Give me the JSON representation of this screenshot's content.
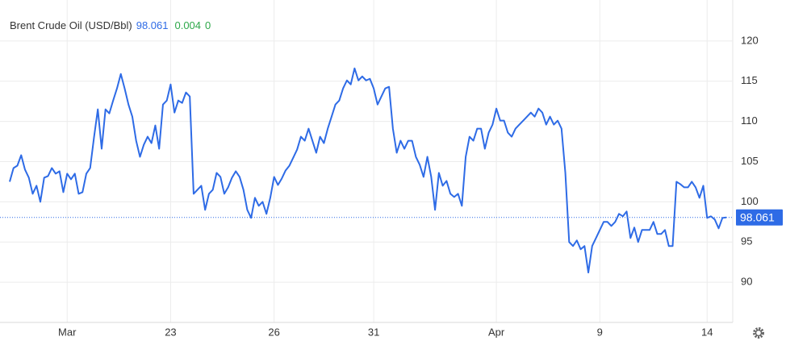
{
  "chart_data": {
    "type": "line",
    "title": "Brent Crude Oil (USD/Bbl)",
    "price": 98.061,
    "change": 0.004,
    "change_pct": 0,
    "color": "#2e6be6",
    "grid": true,
    "ylim": [
      85,
      125
    ],
    "yticks": [
      90,
      95,
      100,
      105,
      110,
      115,
      120
    ],
    "xlim": [
      0,
      187
    ],
    "xticks": [
      {
        "value": 15,
        "label": "Mar"
      },
      {
        "value": 42,
        "label": "23"
      },
      {
        "value": 69,
        "label": "26"
      },
      {
        "value": 95,
        "label": "31"
      },
      {
        "value": 127,
        "label": "Apr"
      },
      {
        "value": 154,
        "label": "9"
      },
      {
        "value": 182,
        "label": "14"
      }
    ],
    "values": [
      102.5,
      104.2,
      104.5,
      105.8,
      104.0,
      103.0,
      101.0,
      102.0,
      100.0,
      103.0,
      103.2,
      104.2,
      103.5,
      103.8,
      101.2,
      103.5,
      102.8,
      103.5,
      101.0,
      101.2,
      103.5,
      104.2,
      108.0,
      111.5,
      106.6,
      111.5,
      111.0,
      112.6,
      114.1,
      115.9,
      114.1,
      112.1,
      110.6,
      107.6,
      105.6,
      107.1,
      108.1,
      107.3,
      109.5,
      106.6,
      112.1,
      112.6,
      114.6,
      111.1,
      112.6,
      112.3,
      113.6,
      113.1,
      101.0,
      101.5,
      102.0,
      99.0,
      101.0,
      101.5,
      103.6,
      103.1,
      101.0,
      101.8,
      103.0,
      103.8,
      103.1,
      101.5,
      99.0,
      98.0,
      100.5,
      99.5,
      100.0,
      98.5,
      100.5,
      103.1,
      102.1,
      102.9,
      103.9,
      104.5,
      105.5,
      106.5,
      108.1,
      107.6,
      109.1,
      107.6,
      106.1,
      108.1,
      107.3,
      109.1,
      110.6,
      112.1,
      112.6,
      114.1,
      115.1,
      114.6,
      116.6,
      115.1,
      115.6,
      115.1,
      115.3,
      114.1,
      112.1,
      113.1,
      114.1,
      114.3,
      109.1,
      106.1,
      107.6,
      106.6,
      107.6,
      107.6,
      105.6,
      104.6,
      103.1,
      105.6,
      103.1,
      99.0,
      103.6,
      102.0,
      102.6,
      101.0,
      100.6,
      101.0,
      99.5,
      105.6,
      108.1,
      107.6,
      109.1,
      109.1,
      106.6,
      108.6,
      109.6,
      111.6,
      110.1,
      110.1,
      108.6,
      108.1,
      109.1,
      109.6,
      110.1,
      110.6,
      111.1,
      110.6,
      111.6,
      111.1,
      109.6,
      110.6,
      109.6,
      110.1,
      109.1,
      103.6,
      95.0,
      94.5,
      95.2,
      94.1,
      94.5,
      91.2,
      94.5,
      95.5,
      96.5,
      97.5,
      97.5,
      97.0,
      97.5,
      98.5,
      98.2,
      98.8,
      95.5,
      96.8,
      95.0,
      96.5,
      96.5,
      96.5,
      97.5,
      96.0,
      96.0,
      96.5,
      94.5,
      94.5,
      102.5,
      102.2,
      101.8,
      101.8,
      102.5,
      101.8,
      100.5,
      102.0,
      98.0,
      98.2,
      97.8,
      96.7,
      98.0,
      98.061
    ]
  }
}
